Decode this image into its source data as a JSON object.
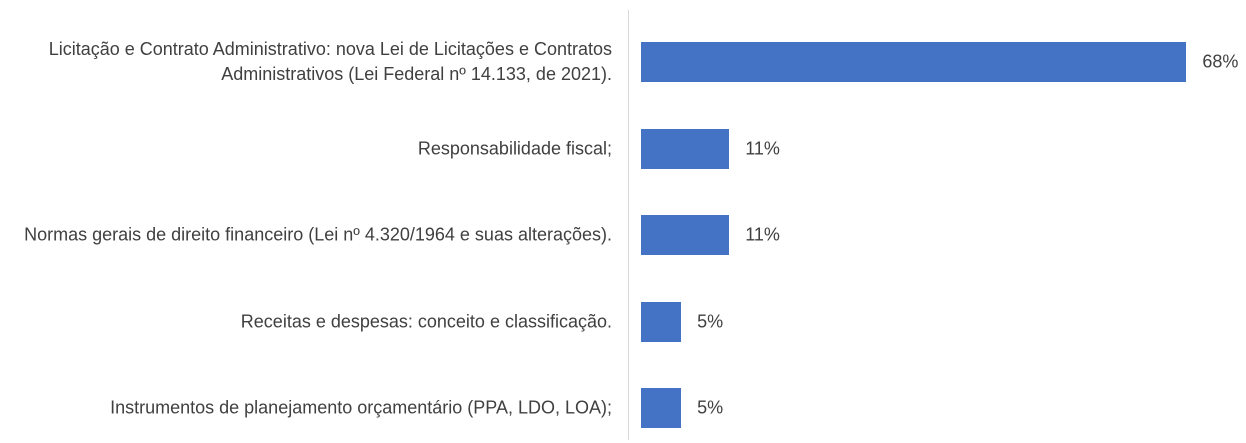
{
  "chart_data": {
    "type": "bar",
    "orientation": "horizontal",
    "categories": [
      "Licitação e Contrato Administrativo: nova Lei de Licitações e Contratos Administrativos (Lei Federal nº 14.133, de 2021).",
      "Responsabilidade fiscal;",
      "Normas gerais de direito financeiro (Lei nº 4.320/1964 e suas alterações).",
      "Receitas e despesas: conceito e classificação.",
      "Instrumentos de planejamento orçamentário (PPA, LDO, LOA);"
    ],
    "values": [
      68,
      11,
      11,
      5,
      5
    ],
    "value_labels": [
      "68%",
      "11%",
      "11%",
      "5%",
      "5%"
    ],
    "color": "#4472c4"
  }
}
